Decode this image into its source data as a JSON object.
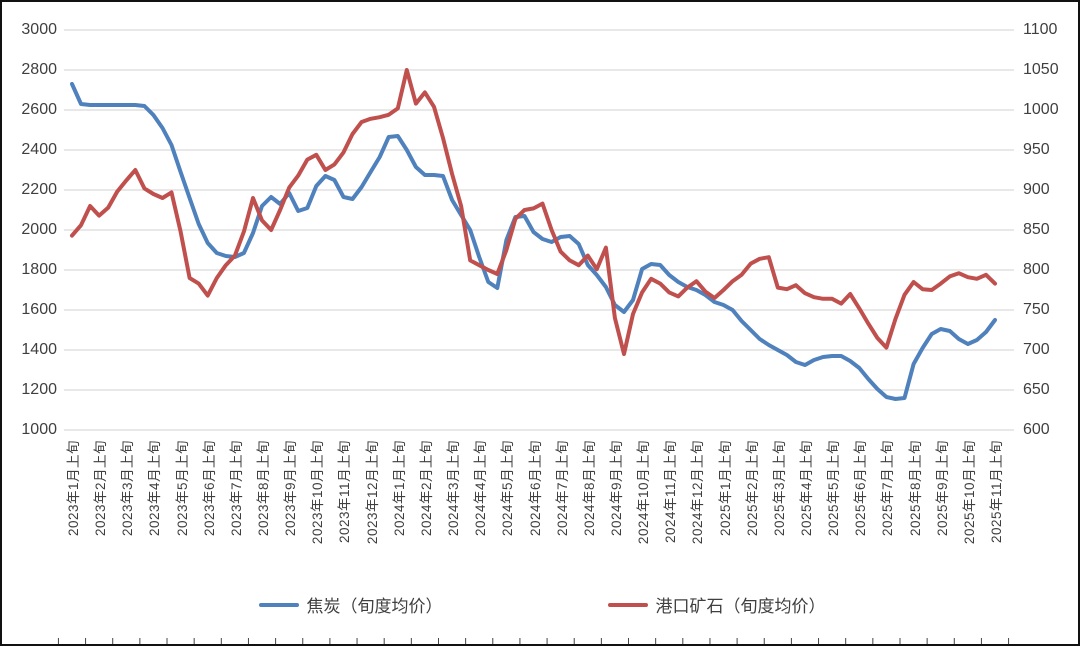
{
  "chart_data": {
    "type": "line",
    "title": "",
    "points_per_month": 3,
    "x_label_note": "monthly tick labels, data at 10-day (旬) intervals",
    "x_labels": [
      "2023年1月上旬",
      "2023年2月上旬",
      "2023年3月上旬",
      "2023年4月上旬",
      "2023年5月上旬",
      "2023年6月上旬",
      "2023年7月上旬",
      "2023年8月上旬",
      "2023年9月上旬",
      "2023年10月上旬",
      "2023年11月上旬",
      "2023年12月上旬",
      "2024年1月上旬",
      "2024年2月上旬",
      "2024年3月上旬",
      "2024年4月上旬",
      "2024年5月上旬",
      "2024年6月上旬",
      "2024年7月上旬",
      "2024年8月上旬",
      "2024年9月上旬",
      "2024年10月上旬",
      "2024年11月上旬",
      "2024年12月上旬",
      "2025年1月上旬",
      "2025年2月上旬",
      "2025年3月上旬",
      "2025年4月上旬",
      "2025年5月上旬",
      "2025年6月上旬",
      "2025年7月上旬",
      "2025年8月上旬",
      "2025年9月上旬",
      "2025年10月上旬",
      "2025年11月上旬"
    ],
    "left_axis": {
      "min": 1000,
      "max": 3000,
      "step": 200,
      "ticks": [
        "3000",
        "2800",
        "2600",
        "2400",
        "2200",
        "2000",
        "1800",
        "1600",
        "1400",
        "1200",
        "1000"
      ]
    },
    "right_axis": {
      "min": 600,
      "max": 1100,
      "step": 50,
      "ticks": [
        "1100",
        "1050",
        "1000",
        "950",
        "900",
        "850",
        "800",
        "750",
        "700",
        "650",
        "600"
      ]
    },
    "grid": true,
    "legend_position": "bottom",
    "series": [
      {
        "name": "焦炭（旬度均价）",
        "axis": "left",
        "color": "#4f81bd",
        "values": [
          2730,
          2630,
          2625,
          2625,
          2625,
          2625,
          2625,
          2625,
          2620,
          2575,
          2510,
          2425,
          2290,
          2160,
          2030,
          1935,
          1885,
          1870,
          1865,
          1885,
          1985,
          2120,
          2165,
          2130,
          2185,
          2095,
          2110,
          2220,
          2270,
          2250,
          2165,
          2155,
          2215,
          2290,
          2365,
          2465,
          2470,
          2400,
          2315,
          2275,
          2275,
          2270,
          2150,
          2075,
          2000,
          1865,
          1740,
          1710,
          1950,
          2065,
          2070,
          1990,
          1955,
          1940,
          1965,
          1970,
          1930,
          1825,
          1775,
          1715,
          1625,
          1590,
          1650,
          1805,
          1830,
          1825,
          1775,
          1740,
          1715,
          1700,
          1675,
          1640,
          1625,
          1600,
          1545,
          1500,
          1455,
          1425,
          1400,
          1375,
          1340,
          1325,
          1350,
          1365,
          1370,
          1370,
          1345,
          1310,
          1255,
          1205,
          1165,
          1155,
          1160,
          1330,
          1410,
          1480,
          1505,
          1495,
          1455,
          1430,
          1450,
          1490,
          1550
        ]
      },
      {
        "name": "港口矿石（旬度均价）",
        "axis": "right",
        "color": "#c0504d",
        "values": [
          843,
          856,
          880,
          868,
          878,
          898,
          912,
          925,
          902,
          895,
          890,
          897,
          848,
          790,
          783,
          768,
          790,
          806,
          818,
          848,
          890,
          862,
          850,
          875,
          903,
          918,
          938,
          944,
          925,
          932,
          947,
          970,
          985,
          989,
          991,
          994,
          1002,
          1050,
          1008,
          1022,
          1004,
          965,
          920,
          880,
          812,
          806,
          800,
          795,
          825,
          864,
          875,
          877,
          883,
          850,
          823,
          812,
          806,
          818,
          801,
          828,
          740,
          695,
          745,
          772,
          789,
          783,
          772,
          767,
          778,
          786,
          773,
          765,
          775,
          786,
          794,
          808,
          814,
          816,
          778,
          776,
          781,
          771,
          766,
          764,
          764,
          758,
          770,
          752,
          733,
          715,
          703,
          739,
          769,
          785,
          776,
          775,
          783,
          792,
          796,
          791,
          789,
          794,
          783
        ]
      }
    ]
  },
  "colors": {
    "grid": "#d9d9d9",
    "axis_text": "#3f3f3f",
    "frame_border": "#111111",
    "background": "#ffffff",
    "blue_series": "#4f81bd",
    "red_series": "#c0504d"
  }
}
